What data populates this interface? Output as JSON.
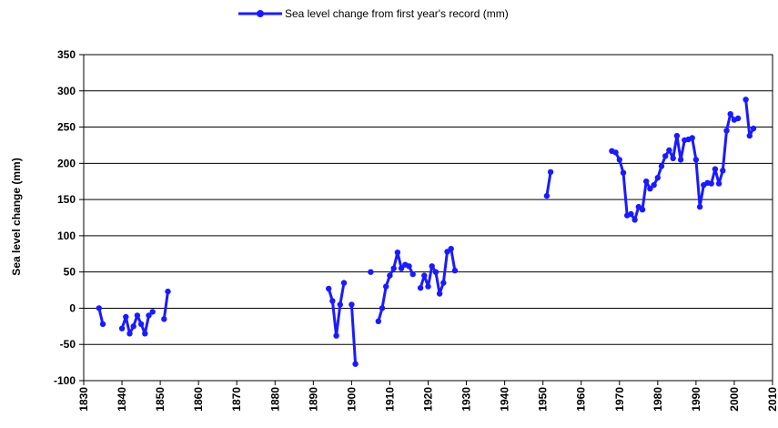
{
  "chart_data": {
    "type": "line",
    "title": "",
    "xlabel": "",
    "ylabel": "Sea level change (mm)",
    "xlim": [
      1830,
      2010
    ],
    "ylim": [
      -100,
      350
    ],
    "x_ticks": [
      1830,
      1840,
      1850,
      1860,
      1870,
      1880,
      1890,
      1900,
      1910,
      1920,
      1930,
      1940,
      1950,
      1960,
      1970,
      1980,
      1990,
      2000,
      2010
    ],
    "y_ticks": [
      -100,
      -50,
      0,
      50,
      100,
      150,
      200,
      250,
      300,
      350
    ],
    "grid": "horizontal",
    "legend_position": "top",
    "series": [
      {
        "name": "Sea level change from first year's record (mm)",
        "color": "#1a1aff",
        "segments": [
          [
            [
              1834,
              0
            ],
            [
              1835,
              -22
            ]
          ],
          [
            [
              1840,
              -28
            ],
            [
              1841,
              -12
            ],
            [
              1842,
              -35
            ],
            [
              1843,
              -25
            ],
            [
              1844,
              -10
            ],
            [
              1845,
              -22
            ],
            [
              1846,
              -35
            ],
            [
              1847,
              -10
            ],
            [
              1848,
              -5
            ]
          ],
          [
            [
              1851,
              -15
            ],
            [
              1852,
              23
            ]
          ],
          [
            [
              1894,
              27
            ],
            [
              1895,
              10
            ],
            [
              1896,
              -38
            ],
            [
              1897,
              5
            ],
            [
              1898,
              35
            ]
          ],
          [
            [
              1900,
              5
            ],
            [
              1901,
              -77
            ]
          ],
          [
            [
              1905,
              50
            ]
          ],
          [
            [
              1907,
              -18
            ],
            [
              1908,
              0
            ],
            [
              1909,
              30
            ],
            [
              1910,
              45
            ],
            [
              1911,
              55
            ],
            [
              1912,
              77
            ],
            [
              1913,
              55
            ],
            [
              1914,
              60
            ],
            [
              1915,
              58
            ],
            [
              1916,
              47
            ]
          ],
          [
            [
              1918,
              28
            ],
            [
              1919,
              45
            ],
            [
              1920,
              30
            ],
            [
              1921,
              58
            ],
            [
              1922,
              50
            ],
            [
              1923,
              20
            ],
            [
              1924,
              35
            ],
            [
              1925,
              78
            ],
            [
              1926,
              82
            ],
            [
              1927,
              52
            ]
          ],
          [
            [
              1951,
              155
            ],
            [
              1952,
              188
            ]
          ],
          [
            [
              1968,
              217
            ],
            [
              1969,
              215
            ],
            [
              1970,
              205
            ],
            [
              1971,
              187
            ],
            [
              1972,
              128
            ],
            [
              1973,
              130
            ],
            [
              1974,
              122
            ],
            [
              1975,
              140
            ],
            [
              1976,
              136
            ],
            [
              1977,
              175
            ],
            [
              1978,
              165
            ],
            [
              1979,
              170
            ],
            [
              1980,
              180
            ],
            [
              1981,
              196
            ],
            [
              1982,
              210
            ],
            [
              1983,
              218
            ],
            [
              1984,
              207
            ],
            [
              1985,
              238
            ],
            [
              1986,
              205
            ],
            [
              1987,
              232
            ],
            [
              1988,
              233
            ],
            [
              1989,
              235
            ],
            [
              1990,
              205
            ],
            [
              1991,
              140
            ],
            [
              1992,
              170
            ],
            [
              1993,
              173
            ],
            [
              1994,
              172
            ],
            [
              1995,
              192
            ],
            [
              1996,
              172
            ],
            [
              1997,
              190
            ],
            [
              1998,
              245
            ],
            [
              1999,
              268
            ],
            [
              2000,
              260
            ],
            [
              2001,
              262
            ]
          ],
          [
            [
              2003,
              288
            ],
            [
              2004,
              238
            ],
            [
              2005,
              248
            ]
          ]
        ]
      }
    ]
  }
}
